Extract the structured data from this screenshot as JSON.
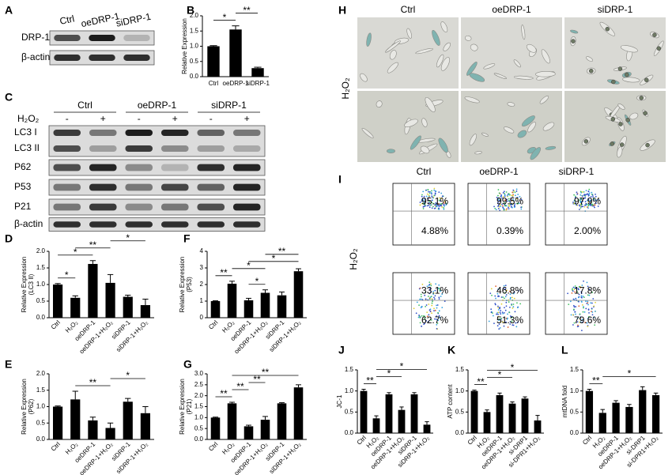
{
  "panel_letters": [
    "A",
    "B",
    "C",
    "D",
    "E",
    "F",
    "G",
    "H",
    "I",
    "J",
    "K",
    "L"
  ],
  "blot_a": {
    "lanes": [
      "Ctrl",
      "oeDRP-1",
      "siDRP-1"
    ],
    "rows": [
      "DRP-1",
      "β-actin"
    ]
  },
  "blot_c": {
    "groups": [
      "Ctrl",
      "oeDRP-1",
      "siDRP-1"
    ],
    "treatment": "H₂O₂",
    "signs": [
      "-",
      "+",
      "-",
      "+",
      "-",
      "+"
    ],
    "rows": [
      "LC3 I",
      "LC3 II",
      "P62",
      "P53",
      "P21",
      "β-actin"
    ]
  },
  "microscopy": {
    "columns": [
      "Ctrl",
      "oeDRP-1",
      "siDRP-1"
    ],
    "row_label": "H₂O₂"
  },
  "flow": {
    "columns": [
      "Ctrl",
      "oeDRP-1",
      "siDRP-1"
    ],
    "row_label": "H₂O₂",
    "plots": [
      [
        [
          "95.1%",
          "4.88%"
        ],
        [
          "99.5%",
          "0.39%"
        ],
        [
          "97.9%",
          "2.00%"
        ]
      ],
      [
        [
          "33.1%",
          "62.7%"
        ],
        [
          "46.8%",
          "51.3%"
        ],
        [
          "17.8%",
          "79.6%"
        ]
      ]
    ]
  },
  "chart_data": [
    {
      "type": "bar",
      "ylabel": [
        "Relative Expression"
      ],
      "categories": [
        "Ctrl",
        "oeDRP-1",
        "siDRP-1"
      ],
      "values": [
        1.0,
        1.55,
        0.28
      ],
      "errors": [
        0.02,
        0.12,
        0.03
      ],
      "color": "#000000",
      "ylim": [
        0,
        2
      ],
      "yticks": [
        {
          "value": 0,
          "label": "0.0"
        },
        0.5,
        {
          "value": 1,
          "label": "1.0"
        },
        1.5,
        {
          "value": 2,
          "label": "2.0"
        }
      ],
      "significance": [
        {
          "between": [
            "Ctrl",
            "oeDRP-1"
          ],
          "label": "*"
        },
        {
          "between": [
            "oeDRP-1",
            "siDRP-1"
          ],
          "label": "**"
        }
      ]
    },
    {
      "type": "bar",
      "ylabel": [
        "Relative Expression",
        "(LC3 II)"
      ],
      "categories": [
        "Ctrl",
        "H₂O₂",
        "oeDRP-1",
        "oeDRP-1+H₂O₂",
        "siDRP-1",
        "siDRP-1+H₂O₂"
      ],
      "values": [
        1.0,
        0.6,
        1.62,
        1.05,
        0.63,
        0.38
      ],
      "errors": [
        0.03,
        0.06,
        0.1,
        0.25,
        0.05,
        0.18
      ],
      "color": "#000000",
      "ylim": [
        0,
        2
      ],
      "yticks": [
        {
          "value": 0,
          "label": "0.0"
        },
        0.5,
        {
          "value": 1,
          "label": "1.0"
        },
        1.5,
        {
          "value": 2,
          "label": "2.0"
        }
      ],
      "significance": [
        {
          "between": [
            "Ctrl",
            "H₂O₂"
          ],
          "label": "*"
        },
        {
          "between": [
            "Ctrl",
            "oeDRP-1"
          ],
          "label": "*"
        },
        {
          "between": [
            "H₂O₂",
            "oeDRP-1+H₂O₂"
          ],
          "label": "**"
        },
        {
          "between": [
            "oeDRP-1+H₂O₂",
            "siDRP-1+H₂O₂"
          ],
          "label": "*"
        }
      ]
    },
    {
      "type": "bar",
      "ylabel": [
        "Relative Expression",
        "(P62)"
      ],
      "categories": [
        "Ctrl",
        "H₂O₂",
        "oeDRP-1",
        "oeDRP-1+H₂O₂",
        "siDRP-1",
        "siDRP-1+H₂O₂"
      ],
      "values": [
        1.0,
        1.22,
        0.58,
        0.35,
        1.15,
        0.8
      ],
      "errors": [
        0.02,
        0.25,
        0.1,
        0.15,
        0.1,
        0.2
      ],
      "color": "#000000",
      "ylim": [
        0,
        2
      ],
      "yticks": [
        {
          "value": 0,
          "label": "0.0"
        },
        0.5,
        {
          "value": 1,
          "label": "1.0"
        },
        1.5,
        {
          "value": 2,
          "label": "2.0"
        }
      ],
      "significance": [
        {
          "between": [
            "H₂O₂",
            "oeDRP-1+H₂O₂"
          ],
          "label": "**"
        },
        {
          "between": [
            "oeDRP-1+H₂O₂",
            "siDRP-1+H₂O₂"
          ],
          "label": "*"
        }
      ]
    },
    {
      "type": "bar",
      "ylabel": [
        "Relative Expression",
        "(P53)"
      ],
      "categories": [
        "Ctrl",
        "H₂O₂",
        "oeDRP-1",
        "oeDRP-1+H₂O₂",
        "siDRP-1",
        "siDRP-1+H₂O₂"
      ],
      "values": [
        1.0,
        2.05,
        1.05,
        1.5,
        1.35,
        2.8
      ],
      "errors": [
        0.02,
        0.15,
        0.12,
        0.18,
        0.2,
        0.15
      ],
      "color": "#000000",
      "ylim": [
        0,
        4
      ],
      "yticks": [
        0,
        1,
        2,
        3,
        4
      ],
      "significance": [
        {
          "between": [
            "Ctrl",
            "H₂O₂"
          ],
          "label": "**"
        },
        {
          "between": [
            "oeDRP-1",
            "oeDRP-1+H₂O₂"
          ],
          "label": "*"
        },
        {
          "between": [
            "H₂O₂",
            "oeDRP-1+H₂O₂"
          ],
          "label": "*"
        },
        {
          "between": [
            "oeDRP-1",
            "siDRP-1+H₂O₂"
          ],
          "label": "*"
        },
        {
          "between": [
            "oeDRP-1+H₂O₂",
            "siDRP-1+H₂O₂"
          ],
          "label": "**"
        }
      ]
    },
    {
      "type": "bar",
      "ylabel": [
        "Relative Expression",
        "(P21)"
      ],
      "categories": [
        "Ctrl",
        "H₂O₂",
        "oeDRP-1",
        "oeDRP-1+H₂O₂",
        "siDRP-1",
        "siDRP-1+H₂O₂"
      ],
      "values": [
        1.0,
        1.65,
        0.6,
        0.9,
        1.65,
        2.38
      ],
      "errors": [
        0.02,
        0.05,
        0.05,
        0.15,
        0.03,
        0.12
      ],
      "color": "#000000",
      "ylim": [
        0,
        3
      ],
      "yticks": [
        {
          "value": 0,
          "label": "0.0"
        },
        0.5,
        {
          "value": 1,
          "label": "1.0"
        },
        1.5,
        {
          "value": 2,
          "label": "2.0"
        },
        2.5,
        {
          "value": 3,
          "label": "3.0"
        }
      ],
      "significance": [
        {
          "between": [
            "Ctrl",
            "H₂O₂"
          ],
          "label": "**"
        },
        {
          "between": [
            "H₂O₂",
            "oeDRP-1"
          ],
          "label": "**"
        },
        {
          "between": [
            "oeDRP-1",
            "oeDRP-1+H₂O₂"
          ],
          "label": "**"
        },
        {
          "between": [
            "H₂O₂",
            "siDRP-1+H₂O₂"
          ],
          "label": "**"
        }
      ]
    },
    {
      "type": "bar",
      "ylabel": [
        "JC-1"
      ],
      "categories": [
        "Ctrl",
        "H₂O₂",
        "oeDRP-1",
        "oeDRP-1+H₂O₂",
        "siDRP-1",
        "siDRP-1+H₂O₂"
      ],
      "values": [
        1.0,
        0.35,
        0.92,
        0.55,
        0.92,
        0.2
      ],
      "errors": [
        0.04,
        0.06,
        0.04,
        0.07,
        0.04,
        0.07
      ],
      "color": "#000000",
      "ylim": [
        0,
        1.5
      ],
      "yticks": [
        {
          "value": 0,
          "label": "0.0"
        },
        0.5,
        {
          "value": 1,
          "label": "1.0"
        },
        1.5
      ],
      "significance": [
        {
          "between": [
            "Ctrl",
            "H₂O₂"
          ],
          "label": "**"
        },
        {
          "between": [
            "H₂O₂",
            "oeDRP-1+H₂O₂"
          ],
          "label": "*"
        },
        {
          "between": [
            "H₂O₂",
            "siDRP-1+H₂O₂"
          ],
          "label": "*"
        }
      ]
    },
    {
      "type": "bar",
      "ylabel": [
        "ATP content"
      ],
      "categories": [
        "Ctrl",
        "H₂O₂",
        "oeDRP-1",
        "oeDRP-1+H₂O₂",
        "si-DRP1",
        "si-DPR1+H₂O₂"
      ],
      "values": [
        1.0,
        0.5,
        0.9,
        0.7,
        0.82,
        0.3
      ],
      "errors": [
        0.02,
        0.05,
        0.05,
        0.04,
        0.04,
        0.12
      ],
      "color": "#000000",
      "ylim": [
        0,
        1.5
      ],
      "yticks": [
        {
          "value": 0,
          "label": "0.0"
        },
        0.5,
        {
          "value": 1,
          "label": "1.0"
        },
        1.5
      ],
      "significance": [
        {
          "between": [
            "Ctrl",
            "H₂O₂"
          ],
          "label": "**"
        },
        {
          "between": [
            "H₂O₂",
            "oeDRP-1+H₂O₂"
          ],
          "label": "*"
        },
        {
          "between": [
            "H₂O₂",
            "si-DPR1+H₂O₂"
          ],
          "label": "*"
        }
      ]
    },
    {
      "type": "bar",
      "ylabel": [
        "mtDNA fold"
      ],
      "categories": [
        "Ctrl",
        "H₂O₂",
        "oeDRP-1",
        "oeDRP-1+H₂O₂",
        "si-DRP1",
        "si-DPR1+H₂O₂"
      ],
      "values": [
        1.0,
        0.48,
        0.72,
        0.62,
        1.02,
        0.9
      ],
      "errors": [
        0.04,
        0.08,
        0.05,
        0.06,
        0.08,
        0.05
      ],
      "color": "#000000",
      "ylim": [
        0,
        1.5
      ],
      "yticks": [
        {
          "value": 0,
          "label": "0.0"
        },
        0.5,
        {
          "value": 1,
          "label": "1.0"
        },
        1.5
      ],
      "significance": [
        {
          "between": [
            "Ctrl",
            "H₂O₂"
          ],
          "label": "**"
        },
        {
          "between": [
            "H₂O₂",
            "si-DPR1+H₂O₂"
          ],
          "label": "*"
        }
      ]
    }
  ]
}
